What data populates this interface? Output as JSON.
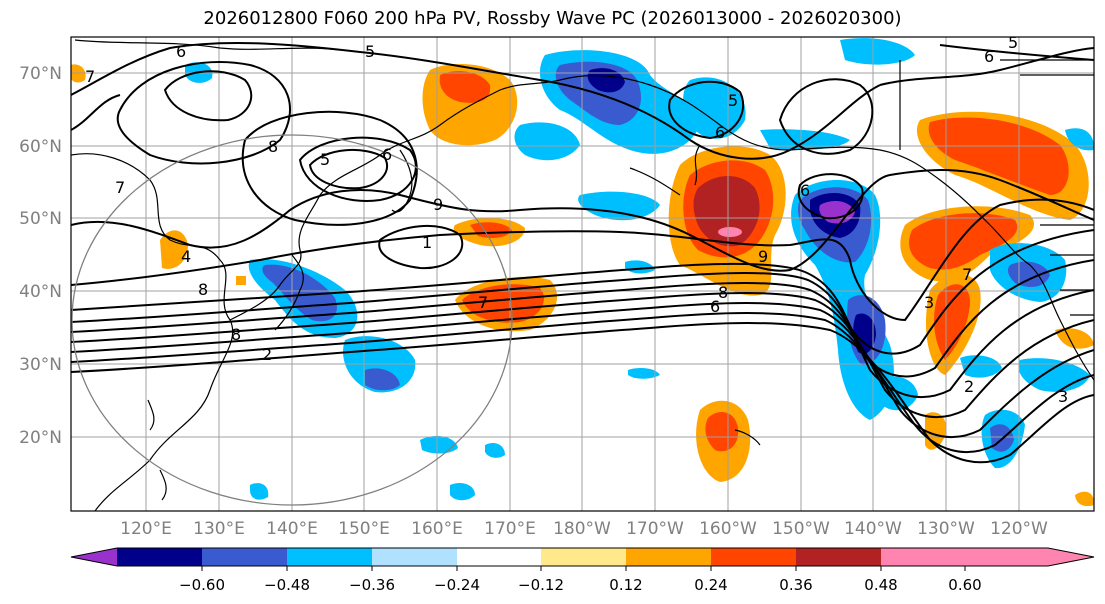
{
  "title": "2026012800 F060 200 hPa PV, Rossby Wave PC (2026013000 - 2026020300)",
  "lat_labels": [
    "70°N",
    "60°N",
    "50°N",
    "40°N",
    "30°N",
    "20°N"
  ],
  "lon_labels": [
    "120°E",
    "130°E",
    "140°E",
    "150°E",
    "160°E",
    "170°E",
    "180°W",
    "170°W",
    "160°W",
    "150°W",
    "140°W",
    "130°W",
    "120°W"
  ],
  "colorbar": {
    "ticks": [
      "−0.60",
      "−0.48",
      "−0.36",
      "−0.24",
      "−0.12",
      "0.12",
      "0.24",
      "0.36",
      "0.48",
      "0.60"
    ],
    "colors": [
      "#9932CC",
      "#00008B",
      "#3A5BD0",
      "#00BFFF",
      "#B0E2FF",
      "#FFFFFF",
      "#FFE98A",
      "#FFA500",
      "#FF4500",
      "#B22222",
      "#FF85B0"
    ]
  },
  "contour_labels": [
    "6",
    "5",
    "7",
    "8",
    "6",
    "5",
    "6",
    "9",
    "7",
    "8",
    "4",
    "8",
    "2",
    "7",
    "1",
    "6",
    "8",
    "9",
    "6",
    "5",
    "3",
    "7",
    "2",
    "3",
    "6",
    "5"
  ]
}
